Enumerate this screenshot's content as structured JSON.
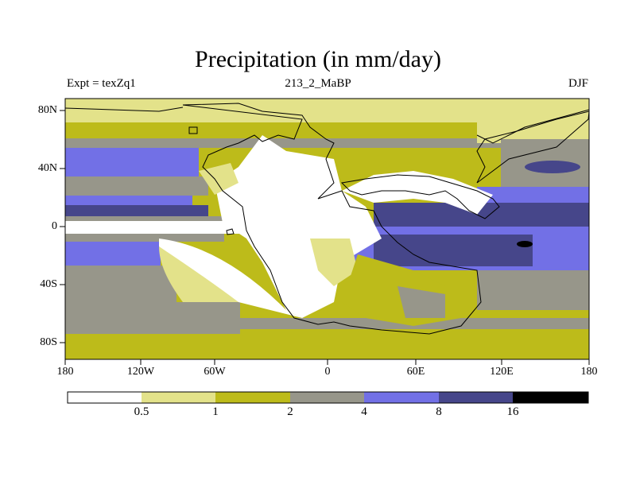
{
  "title": "Precipitation (in mm/day)",
  "subtitle_left": "Expt = texZq1",
  "subtitle_center": "213_2_MaBP",
  "subtitle_right": "DJF",
  "y_axis": {
    "ticks": [
      {
        "label": "80N",
        "lat": 80
      },
      {
        "label": "40N",
        "lat": 40
      },
      {
        "label": "0",
        "lat": 0
      },
      {
        "label": "40S",
        "lat": -40
      },
      {
        "label": "80S",
        "lat": -80
      }
    ]
  },
  "x_axis": {
    "ticks": [
      {
        "label": "180",
        "lon": -180
      },
      {
        "label": "120W",
        "lon": -120
      },
      {
        "label": "60W",
        "lon": -60
      },
      {
        "label": "0",
        "lon": 0
      },
      {
        "label": "60E",
        "lon": 60
      },
      {
        "label": "120E",
        "lon": 120
      },
      {
        "label": "180",
        "lon": 180
      }
    ]
  },
  "colorbar": {
    "levels": [
      "0.5",
      "1",
      "2",
      "4",
      "8",
      "16"
    ],
    "colors": [
      "#ffffff",
      "#e3e28a",
      "#bdbb1a",
      "#97968a",
      "#7270e6",
      "#46468a",
      "#000000"
    ]
  }
}
